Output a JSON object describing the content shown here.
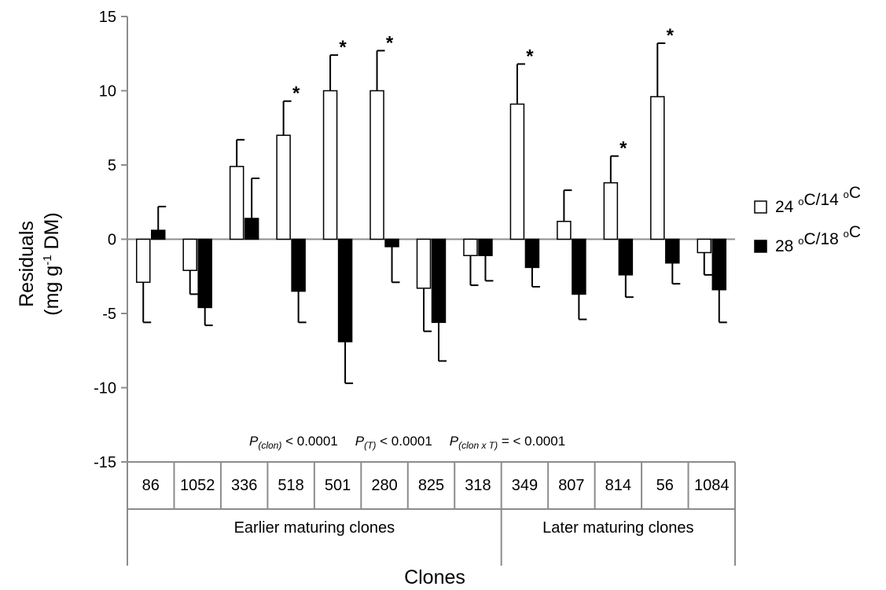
{
  "chart_data": {
    "type": "bar",
    "ylabel_line1": "Residuals",
    "ylabel_line2_pre": "(mg g",
    "ylabel_line2_sup": "-1",
    "ylabel_line2_post": " DM)",
    "xlabel": "Clones",
    "ylim": [
      -15,
      15
    ],
    "yticks": [
      -15,
      -10,
      -5,
      0,
      5,
      10,
      15
    ],
    "categories": [
      "86",
      "1052",
      "336",
      "518",
      "501",
      "280",
      "825",
      "318",
      "349",
      "807",
      "814",
      "56",
      "1084"
    ],
    "groups": [
      {
        "label": "Earlier maturing clones",
        "count": 8
      },
      {
        "label": "Later maturing clones",
        "count": 5
      }
    ],
    "legend_position": "right",
    "series": [
      {
        "name": "24 °C/14 °C",
        "name_parts": [
          "24 ",
          "o",
          "C/14 ",
          "o",
          "C"
        ],
        "color": "#ffffff",
        "values": [
          -2.9,
          -2.1,
          4.9,
          7.0,
          10.0,
          10.0,
          -3.3,
          -1.1,
          9.1,
          1.2,
          3.8,
          9.6,
          -0.9
        ],
        "errors": [
          2.7,
          1.6,
          1.8,
          2.3,
          2.4,
          2.7,
          2.9,
          2.0,
          2.7,
          2.1,
          1.8,
          3.6,
          1.5
        ]
      },
      {
        "name": "28 °C/18 °C",
        "name_parts": [
          "28 ",
          "o",
          "C/18 ",
          "o",
          "C"
        ],
        "color": "#000000",
        "values": [
          0.6,
          -4.6,
          1.4,
          -3.5,
          -6.9,
          -0.5,
          -5.6,
          -1.1,
          -1.9,
          -3.7,
          -2.4,
          -1.6,
          -3.4
        ],
        "errors": [
          1.6,
          1.2,
          2.7,
          2.1,
          2.8,
          2.4,
          2.6,
          1.7,
          1.3,
          1.7,
          1.5,
          1.4,
          2.2
        ]
      }
    ],
    "significant": [
      3,
      4,
      5,
      8,
      10,
      11
    ],
    "significance_mark": "*",
    "stats_annotation": [
      {
        "P": "P",
        "sub": "(clon)",
        "rest": " < 0.0001"
      },
      {
        "P": "P",
        "sub": "(T)",
        "rest": " < 0.0001"
      },
      {
        "P": "P",
        "sub": "(clon x T)",
        "rest": " = < 0.0001"
      }
    ]
  }
}
